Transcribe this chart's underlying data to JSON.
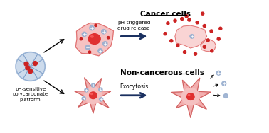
{
  "bg_color": "#ffffff",
  "title_cancer": "Cancer cells",
  "title_noncancer": "Non-cancerous cells",
  "label_platform": "pH-sensitive\npolycarbonate\nplatform",
  "label_drug_release": "pH-triggered\ndrug release",
  "label_exocytosis": "Exocytosis",
  "arrow_color": "#1a3060",
  "cell_fill_cancer": "#f5b8b8",
  "cell_fill_noncancer": "#f5a0a0",
  "nucleus_color": "#e03030",
  "platform_color": "#7a9cc8",
  "platform_fill": "#b8cce4",
  "drug_color": "#cc2222",
  "vesicle_color": "#9ab0d0",
  "figsize": [
    3.78,
    1.88
  ],
  "dpi": 100
}
